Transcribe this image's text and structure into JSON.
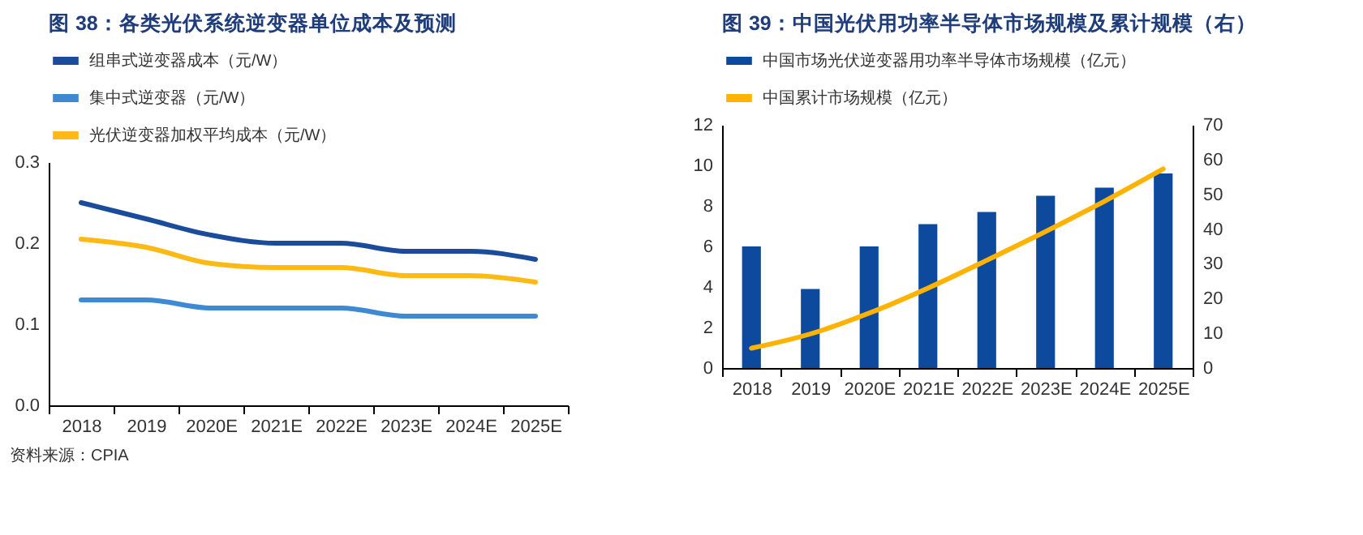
{
  "chart_data": [
    {
      "type": "line",
      "title": "图 38：各类光伏系统逆变器单位成本及预测",
      "categories": [
        "2018",
        "2019",
        "2020E",
        "2021E",
        "2022E",
        "2023E",
        "2024E",
        "2025E"
      ],
      "series": [
        {
          "name": "组串式逆变器成本（元/W）",
          "color": "#1b4c9c",
          "values": [
            0.25,
            0.23,
            0.21,
            0.2,
            0.2,
            0.19,
            0.19,
            0.18
          ]
        },
        {
          "name": "集中式逆变器（元/W）",
          "color": "#3d89d4",
          "values": [
            0.13,
            0.13,
            0.12,
            0.12,
            0.12,
            0.11,
            0.11,
            0.11
          ]
        },
        {
          "name": "光伏逆变器加权平均成本（元/W）",
          "color": "#ffb914",
          "values": [
            0.205,
            0.195,
            0.175,
            0.17,
            0.17,
            0.16,
            0.16,
            0.152
          ]
        }
      ],
      "ylim": [
        0,
        0.3
      ],
      "yticks": [
        {
          "value": 0,
          "label": "0.0"
        },
        0.1,
        0.2,
        0.3
      ],
      "grid": false,
      "legend": "top",
      "annotations": [
        "资料来源：CPIA"
      ]
    },
    {
      "type": "bar",
      "title": "图 39：中国光伏用功率半导体市场规模及累计规模（右）",
      "categories": [
        "2018",
        "2019",
        "2020E",
        "2021E",
        "2022E",
        "2023E",
        "2024E",
        "2025E"
      ],
      "series": [
        {
          "name": "中国市场光伏逆变器用功率半导体市场规模（亿元）",
          "type": "bar",
          "color": "#0d4a9e",
          "values": [
            6,
            3.9,
            6,
            7.1,
            7.7,
            8.5,
            8.9,
            9.6
          ]
        },
        {
          "name": "中国累计市场规模（亿元）",
          "type": "line",
          "axis": "y2",
          "color": "#ffb300",
          "values": [
            5.7,
            9.8,
            15.8,
            23,
            31,
            39.3,
            48,
            57.3
          ]
        }
      ],
      "ylim": [
        0,
        12
      ],
      "yticks": [
        0,
        2,
        4,
        6,
        8,
        10,
        12
      ],
      "y2lim": [
        0,
        70
      ],
      "y2ticks": [
        0,
        10,
        20,
        30,
        40,
        50,
        60,
        70
      ],
      "grid": false,
      "legend": "top"
    }
  ]
}
